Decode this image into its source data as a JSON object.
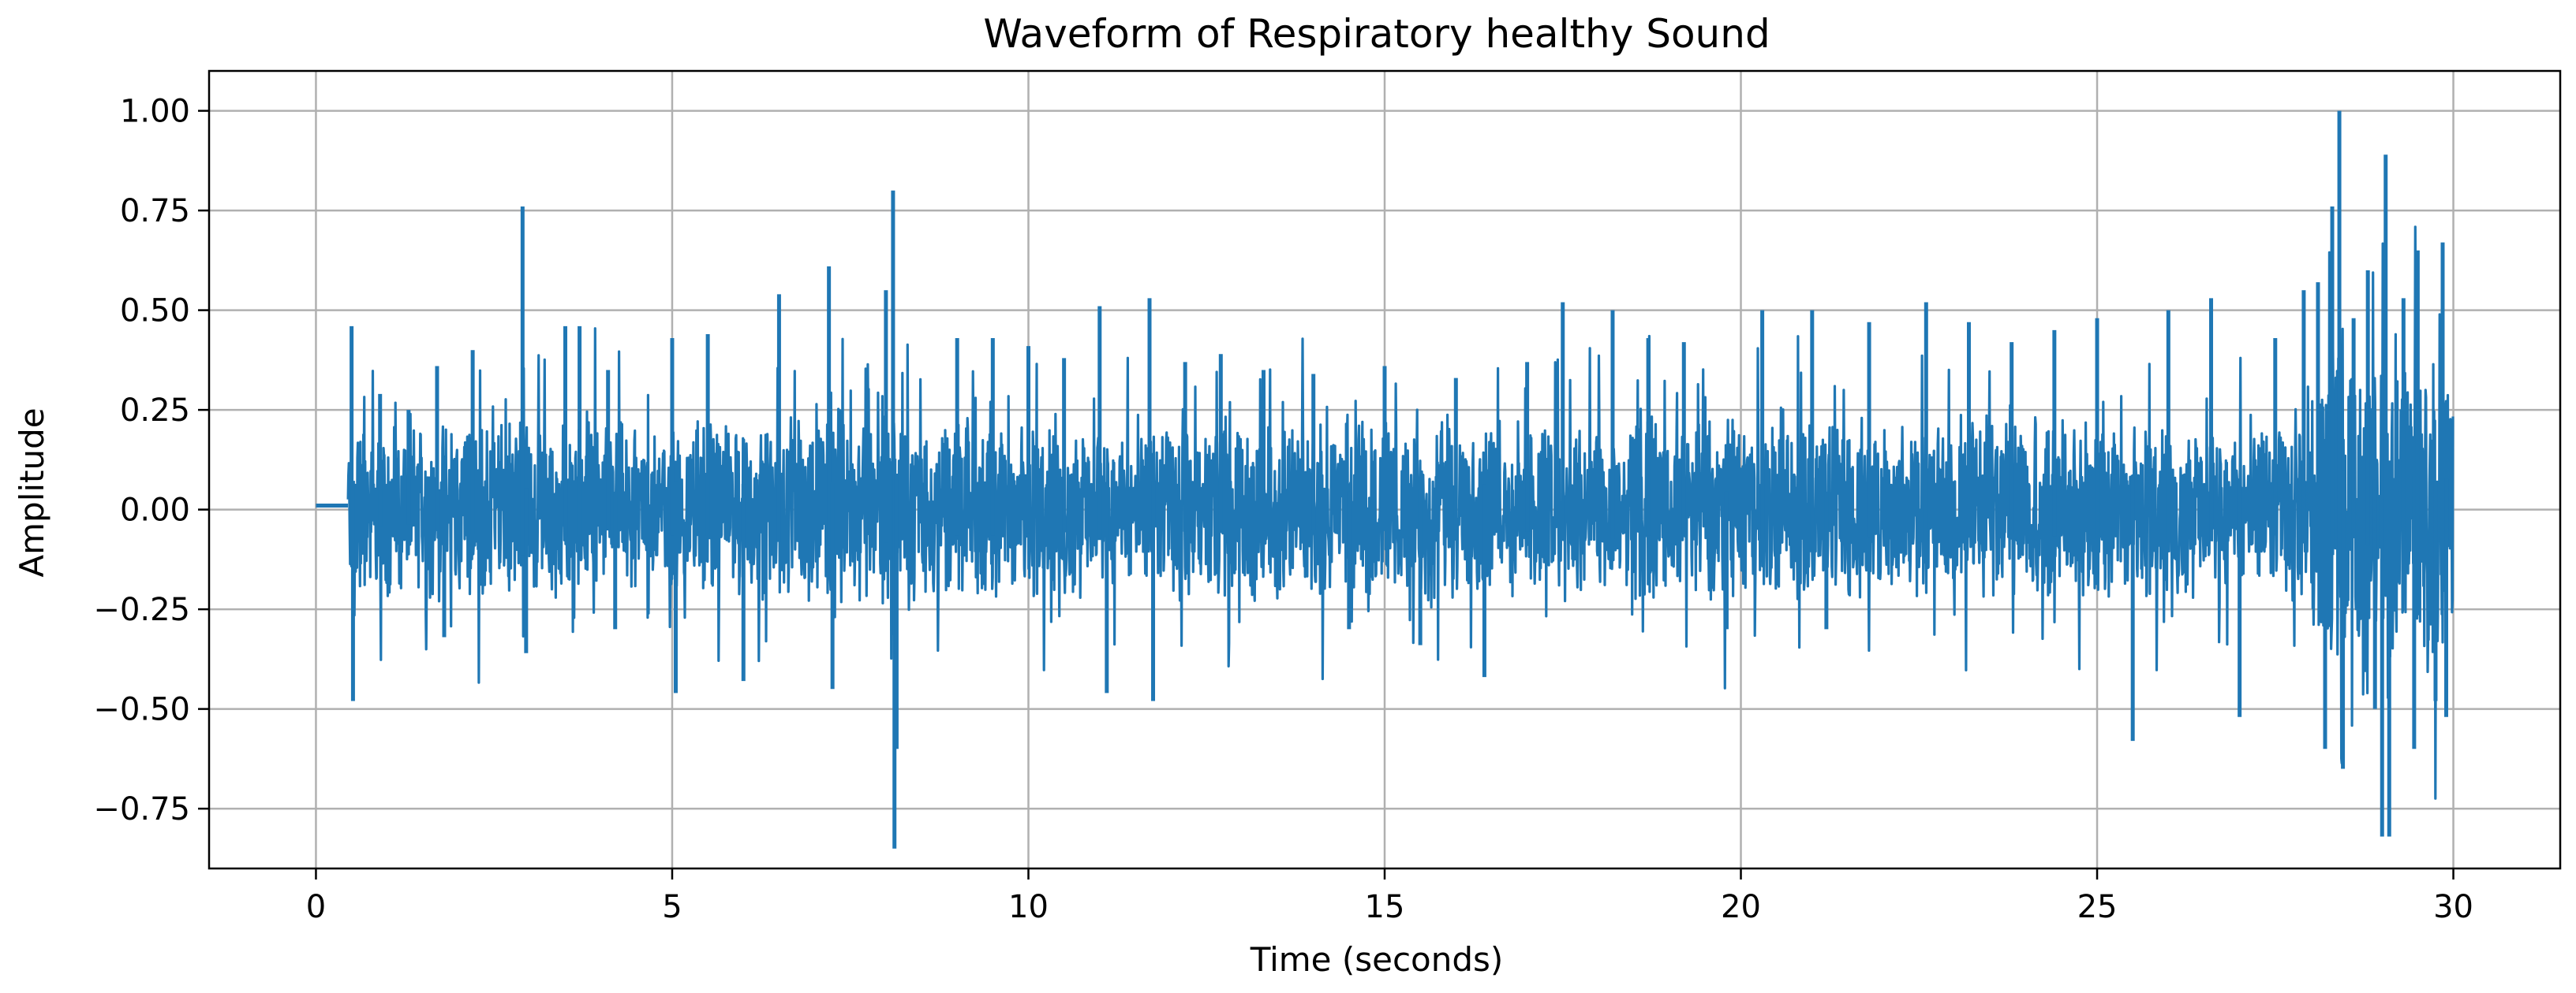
{
  "chart_data": {
    "type": "line",
    "title": "Waveform of Respiratory healthy Sound",
    "xlabel": "Time (seconds)",
    "ylabel": "Amplitude",
    "xlim": [
      -1.5,
      31.5
    ],
    "ylim": [
      -0.9,
      1.1
    ],
    "grid": true,
    "xticks": [
      0,
      5,
      10,
      15,
      20,
      25,
      30
    ],
    "xtick_labels": [
      "0",
      "5",
      "10",
      "15",
      "20",
      "25",
      "30"
    ],
    "yticks": [
      1.0,
      0.75,
      0.5,
      0.25,
      0.0,
      -0.25,
      -0.5,
      -0.75
    ],
    "ytick_labels": [
      "1.00",
      "0.75",
      "0.50",
      "0.25",
      "0.00",
      "−0.25",
      "−0.50",
      "−0.75"
    ],
    "series": [
      {
        "name": "waveform",
        "color": "#1f77b4",
        "duration": 30,
        "silence_until": 0.45,
        "silence_level": 0.01,
        "peaks": [
          {
            "t": 0.5,
            "v": 0.46
          },
          {
            "t": 0.52,
            "v": -0.48
          },
          {
            "t": 0.9,
            "v": 0.29
          },
          {
            "t": 1.3,
            "v": 0.25
          },
          {
            "t": 1.7,
            "v": 0.36
          },
          {
            "t": 1.8,
            "v": -0.32
          },
          {
            "t": 2.2,
            "v": 0.4
          },
          {
            "t": 2.9,
            "v": 0.76
          },
          {
            "t": 2.95,
            "v": -0.36
          },
          {
            "t": 3.5,
            "v": 0.46
          },
          {
            "t": 3.7,
            "v": 0.46
          },
          {
            "t": 4.1,
            "v": 0.35
          },
          {
            "t": 4.2,
            "v": -0.3
          },
          {
            "t": 5.0,
            "v": 0.43
          },
          {
            "t": 5.05,
            "v": -0.46
          },
          {
            "t": 5.5,
            "v": 0.44
          },
          {
            "t": 6.0,
            "v": -0.43
          },
          {
            "t": 6.5,
            "v": 0.54
          },
          {
            "t": 7.2,
            "v": 0.61
          },
          {
            "t": 7.25,
            "v": -0.45
          },
          {
            "t": 8.0,
            "v": 0.55
          },
          {
            "t": 8.1,
            "v": 0.8
          },
          {
            "t": 8.12,
            "v": -0.85
          },
          {
            "t": 8.15,
            "v": -0.6
          },
          {
            "t": 9.0,
            "v": 0.43
          },
          {
            "t": 9.5,
            "v": 0.43
          },
          {
            "t": 10.0,
            "v": 0.41
          },
          {
            "t": 10.5,
            "v": 0.38
          },
          {
            "t": 11.0,
            "v": 0.51
          },
          {
            "t": 11.1,
            "v": -0.46
          },
          {
            "t": 11.7,
            "v": 0.53
          },
          {
            "t": 11.75,
            "v": -0.48
          },
          {
            "t": 12.2,
            "v": 0.37
          },
          {
            "t": 12.7,
            "v": 0.39
          },
          {
            "t": 13.3,
            "v": 0.35
          },
          {
            "t": 14.0,
            "v": 0.34
          },
          {
            "t": 14.5,
            "v": -0.3
          },
          {
            "t": 15.0,
            "v": 0.36
          },
          {
            "t": 15.5,
            "v": -0.34
          },
          {
            "t": 16.0,
            "v": 0.33
          },
          {
            "t": 16.4,
            "v": -0.42
          },
          {
            "t": 17.0,
            "v": 0.37
          },
          {
            "t": 17.5,
            "v": 0.52
          },
          {
            "t": 18.2,
            "v": 0.5
          },
          {
            "t": 18.7,
            "v": 0.43
          },
          {
            "t": 19.2,
            "v": 0.42
          },
          {
            "t": 19.8,
            "v": -0.3
          },
          {
            "t": 20.3,
            "v": 0.5
          },
          {
            "t": 21.0,
            "v": 0.5
          },
          {
            "t": 21.2,
            "v": -0.3
          },
          {
            "t": 21.8,
            "v": 0.47
          },
          {
            "t": 22.6,
            "v": 0.52
          },
          {
            "t": 23.2,
            "v": 0.47
          },
          {
            "t": 23.8,
            "v": 0.42
          },
          {
            "t": 24.4,
            "v": 0.45
          },
          {
            "t": 25.0,
            "v": 0.48
          },
          {
            "t": 25.5,
            "v": -0.58
          },
          {
            "t": 26.0,
            "v": 0.5
          },
          {
            "t": 26.6,
            "v": 0.53
          },
          {
            "t": 27.0,
            "v": -0.52
          },
          {
            "t": 27.5,
            "v": 0.43
          },
          {
            "t": 27.9,
            "v": 0.55
          },
          {
            "t": 28.1,
            "v": 0.57
          },
          {
            "t": 28.2,
            "v": -0.6
          },
          {
            "t": 28.3,
            "v": 0.76
          },
          {
            "t": 28.4,
            "v": 1.0
          },
          {
            "t": 28.45,
            "v": -0.65
          },
          {
            "t": 28.6,
            "v": 0.48
          },
          {
            "t": 28.8,
            "v": 0.6
          },
          {
            "t": 28.9,
            "v": -0.5
          },
          {
            "t": 29.0,
            "v": -0.82
          },
          {
            "t": 29.05,
            "v": 0.89
          },
          {
            "t": 29.1,
            "v": -0.82
          },
          {
            "t": 29.3,
            "v": 0.53
          },
          {
            "t": 29.45,
            "v": -0.6
          },
          {
            "t": 29.5,
            "v": 0.65
          },
          {
            "t": 29.75,
            "v": -0.48
          },
          {
            "t": 29.85,
            "v": 0.67
          },
          {
            "t": 29.9,
            "v": -0.52
          }
        ]
      }
    ]
  }
}
